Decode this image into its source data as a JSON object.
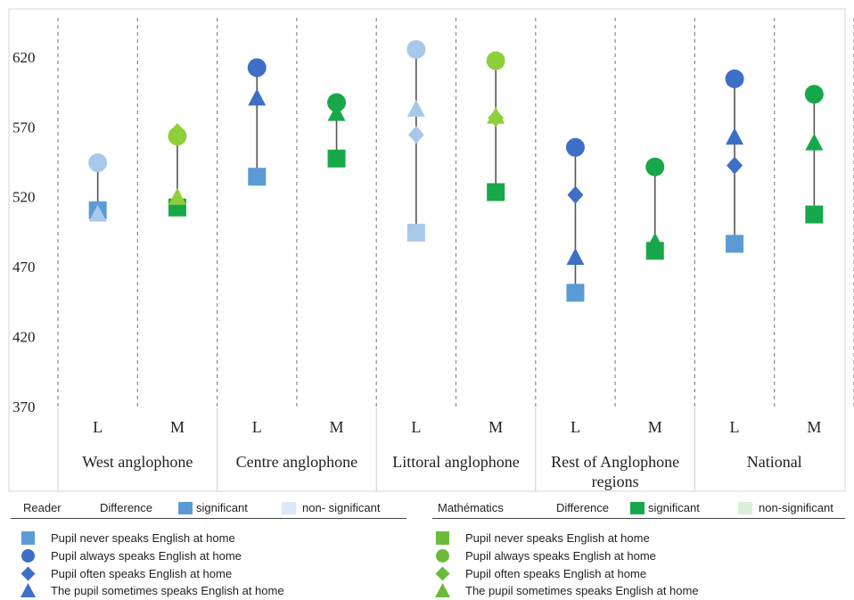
{
  "chart_data": {
    "type": "scatter",
    "ylim": [
      370,
      655
    ],
    "yticks": [
      370,
      420,
      470,
      520,
      570,
      620
    ],
    "grid": false,
    "groups": [
      "West anglophone",
      "Centre anglophone",
      "Littoral anglophone",
      "Rest of Anglophone regions",
      "National"
    ],
    "subjects": [
      "L",
      "M"
    ],
    "markers": {
      "never": "square",
      "always": "circle",
      "often": "diamond",
      "sometimes": "triangle"
    },
    "colors": {
      "L_sig": "#3d6fc6",
      "L_sig_square": "#5b9bd5",
      "L_nonsig": "#a8c8ea",
      "M_sig": "#17a84a",
      "M_nonsig": "#8fcf3c",
      "stem": "#555555"
    },
    "points": [
      {
        "group": "West anglophone",
        "subject": "L",
        "significant": false,
        "never": 511,
        "always": 545,
        "often": null,
        "sometimes": 508
      },
      {
        "group": "West anglophone",
        "subject": "M",
        "significant": false,
        "never": 513,
        "always": 564,
        "often": 567,
        "sometimes": 520
      },
      {
        "group": "Centre anglophone",
        "subject": "L",
        "significant": true,
        "never": 535,
        "always": 613,
        "often": null,
        "sometimes": 591
      },
      {
        "group": "Centre anglophone",
        "subject": "M",
        "significant": true,
        "never": 548,
        "always": 588,
        "often": null,
        "sometimes": 580
      },
      {
        "group": "Littoral anglophone",
        "subject": "L",
        "significant": false,
        "never": 495,
        "always": 626,
        "often": 565,
        "sometimes": 583
      },
      {
        "group": "Littoral anglophone",
        "subject": "M",
        "significant": false,
        "never": 524,
        "always": 618,
        "often": 577,
        "sometimes": 578
      },
      {
        "group": "Rest of Anglophone regions",
        "subject": "L",
        "significant": true,
        "never": 452,
        "always": 556,
        "often": 522,
        "sometimes": 477
      },
      {
        "group": "Rest of Anglophone regions",
        "subject": "M",
        "significant": true,
        "never": 482,
        "always": 542,
        "often": null,
        "sometimes": 488
      },
      {
        "group": "National",
        "subject": "L",
        "significant": true,
        "never": 487,
        "always": 605,
        "often": 543,
        "sometimes": 563
      },
      {
        "group": "National",
        "subject": "M",
        "significant": true,
        "never": 508,
        "always": 594,
        "often": null,
        "sometimes": 559
      }
    ]
  },
  "legend": {
    "reader": {
      "title": "Reader",
      "difference": "Difference",
      "significant": "significant",
      "non_significant": "non- significant",
      "items": [
        "Pupil never speaks English at home",
        "Pupil always speaks English at home",
        "Pupil often speaks English at home",
        "The pupil sometimes speaks English at home"
      ]
    },
    "math": {
      "title": "Mathématics",
      "difference": "Difference",
      "significant": "significant",
      "non_significant": "non-significant",
      "items": [
        "Pupil never speaks English at home",
        "Pupil always speaks English at home",
        "Pupil often speaks English at home",
        "The pupil sometimes speaks English at home"
      ]
    }
  }
}
